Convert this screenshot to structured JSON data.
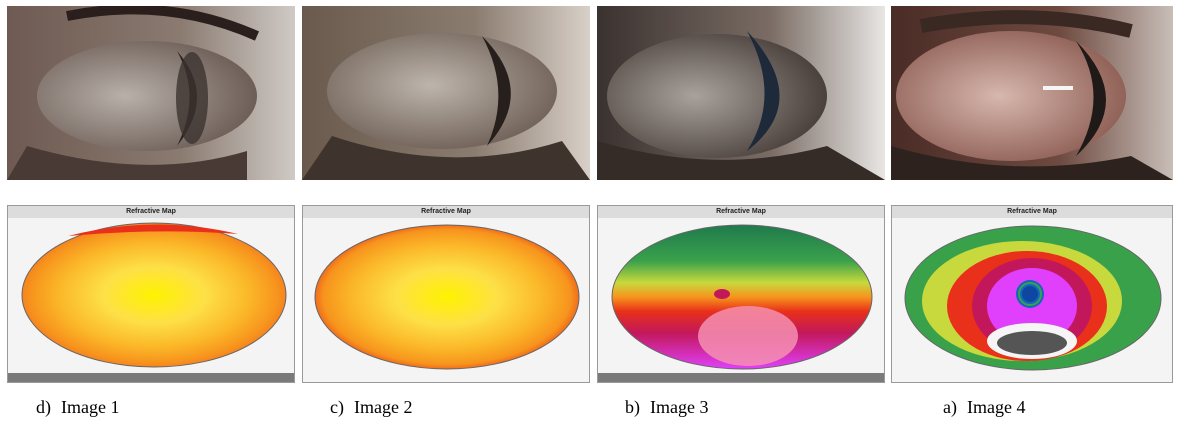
{
  "panels": [
    {
      "letter": "d)",
      "image_label": "Image 1",
      "map_title": "Refractive Map"
    },
    {
      "letter": "c)",
      "image_label": "Image 2",
      "map_title": "Refractive Map"
    },
    {
      "letter": "b)",
      "image_label": "Image 3",
      "map_title": "Refractive Map"
    },
    {
      "letter": "a)",
      "image_label": "Image 4",
      "map_title": "Refractive Map"
    }
  ],
  "colors": {
    "warm_map": [
      "#e8301a",
      "#f26a1f",
      "#f7941d",
      "#fbb829",
      "#fde047",
      "#fff200"
    ],
    "cool_map": [
      "#1f7a4d",
      "#3aa14b",
      "#7cc242",
      "#c7d93d",
      "#f7941d",
      "#e8301a",
      "#c2185b",
      "#e040fb",
      "#f48fb1"
    ]
  }
}
